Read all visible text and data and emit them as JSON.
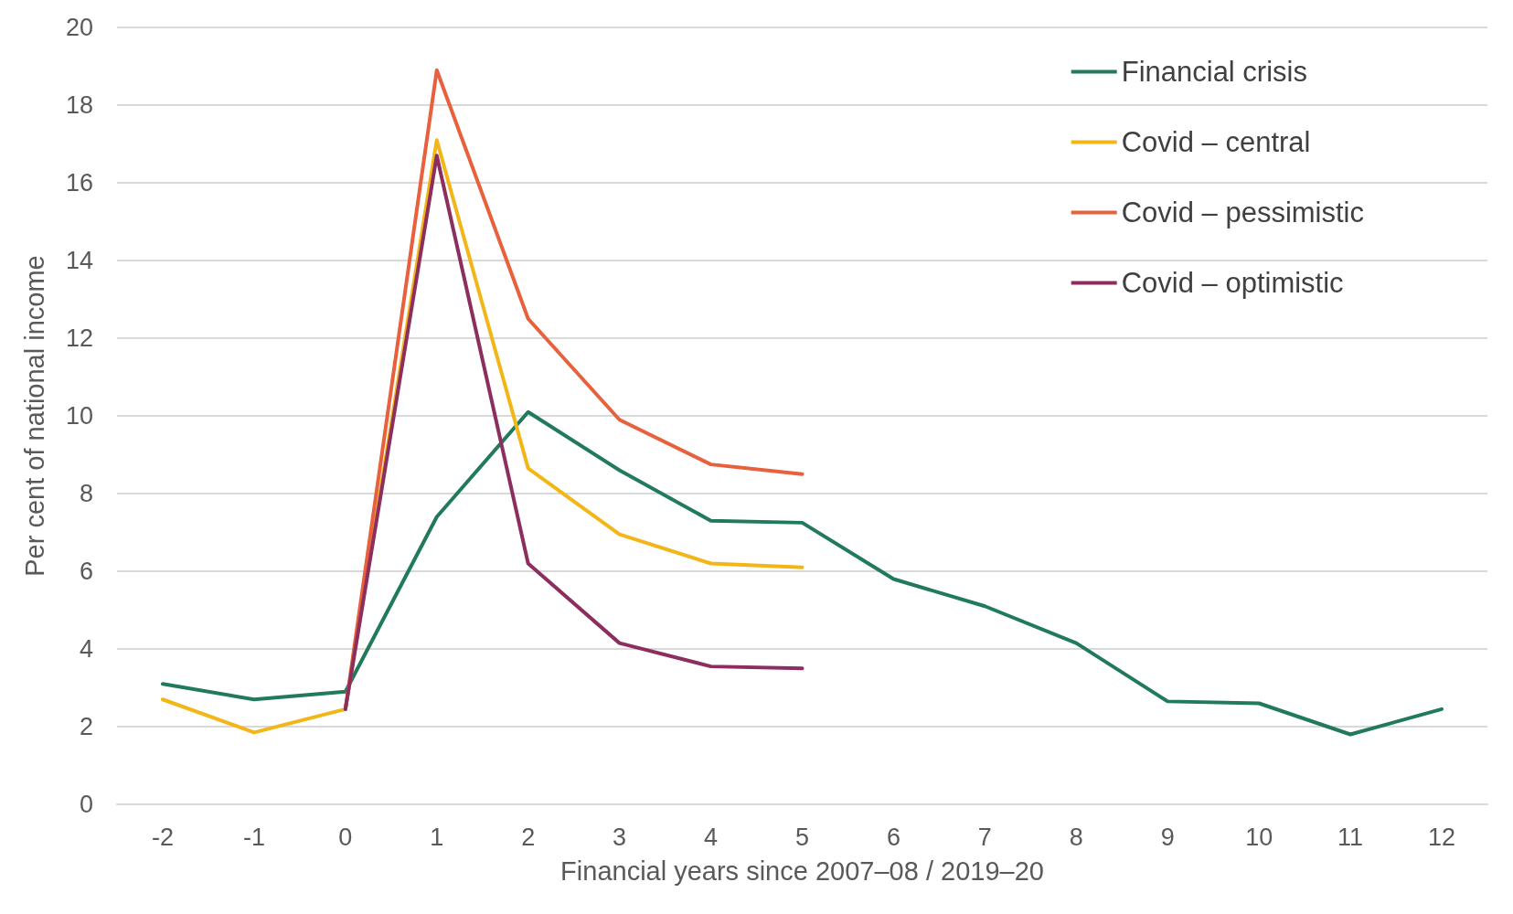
{
  "chart_data": {
    "type": "line",
    "xlabel": "Financial years since 2007–08 / 2019–20",
    "ylabel": "Per cent of national income",
    "categories": [
      "-2",
      "-1",
      "0",
      "1",
      "2",
      "3",
      "4",
      "5",
      "6",
      "7",
      "8",
      "9",
      "10",
      "11",
      "12"
    ],
    "series": [
      {
        "name": "Financial crisis",
        "color": "#217a5b",
        "values": [
          3.1,
          2.7,
          2.9,
          7.4,
          10.1,
          8.6,
          7.3,
          7.25,
          5.8,
          5.1,
          4.15,
          2.65,
          2.6,
          1.8,
          2.45
        ]
      },
      {
        "name": "Covid – central",
        "color": "#f2b619",
        "values": [
          2.7,
          1.85,
          2.45,
          17.1,
          8.65,
          6.95,
          6.2,
          6.1,
          null,
          null,
          null,
          null,
          null,
          null,
          null
        ]
      },
      {
        "name": "Covid – pessimistic",
        "color": "#e8603c",
        "values": [
          null,
          null,
          2.45,
          18.9,
          12.5,
          9.9,
          8.75,
          8.5,
          null,
          null,
          null,
          null,
          null,
          null,
          null
        ]
      },
      {
        "name": "Covid – optimistic",
        "color": "#8c2f5e",
        "values": [
          null,
          null,
          2.45,
          16.7,
          6.2,
          4.15,
          3.55,
          3.5,
          null,
          null,
          null,
          null,
          null,
          null,
          null
        ]
      }
    ],
    "ylim": [
      0,
      20
    ],
    "yticks": [
      0,
      2,
      4,
      6,
      8,
      10,
      12,
      14,
      16,
      18,
      20
    ],
    "grid": "y",
    "legend": "top right",
    "marker": "none",
    "line_style": "solid"
  }
}
